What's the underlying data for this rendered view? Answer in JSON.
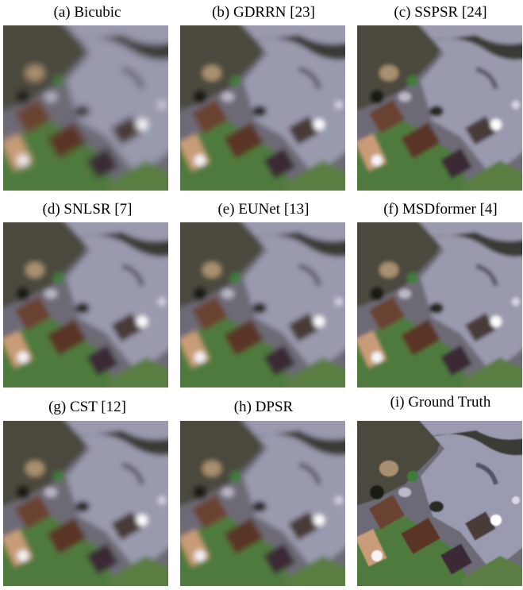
{
  "figure": {
    "panels": [
      {
        "caption": "(a) Bicubic"
      },
      {
        "caption": "(b) GDRRN [23]"
      },
      {
        "caption": "(c) SSPSR [24]"
      },
      {
        "caption": "(d) SNLSR [7]"
      },
      {
        "caption": "(e) EUNet [13]"
      },
      {
        "caption": "(f) MSDformer [4]"
      },
      {
        "caption": "(g) CST [12]"
      },
      {
        "caption": "(h) DPSR"
      },
      {
        "caption": "(i) Ground Truth"
      }
    ]
  }
}
